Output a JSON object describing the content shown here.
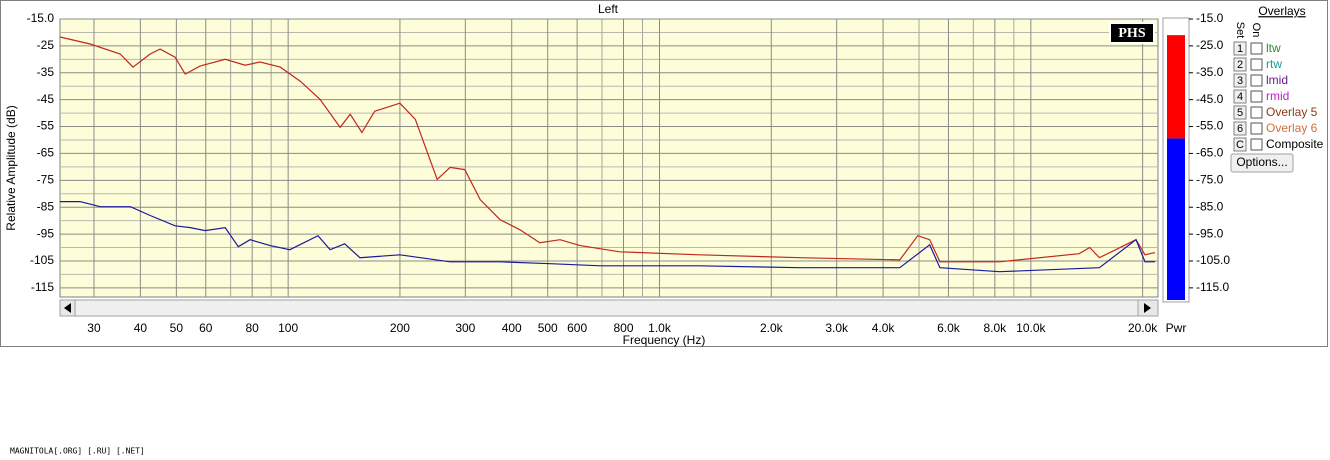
{
  "chart_data": {
    "type": "line",
    "title": "Left",
    "x_label": "Frequency (Hz)",
    "y_label": "Relative Amplitude (dB)",
    "xscale": "log",
    "grid": true,
    "background": "#fdfdd9",
    "xlim": [
      24.3,
      22000
    ],
    "ylim": [
      -118.4,
      -15
    ],
    "xticks": [
      30,
      40,
      50,
      60,
      80,
      100,
      200,
      300,
      400,
      500,
      600,
      800,
      {
        "value": 1000,
        "label": "1.0k"
      },
      {
        "value": 2000,
        "label": "2.0k"
      },
      {
        "value": 3000,
        "label": "3.0k"
      },
      {
        "value": 4000,
        "label": "4.0k"
      },
      {
        "value": 6000,
        "label": "6.0k"
      },
      {
        "value": 8000,
        "label": "8.0k"
      },
      {
        "value": 10000,
        "label": "10.0k"
      },
      {
        "value": 20000,
        "label": "20.0k"
      }
    ],
    "x_minor_grid": [
      70,
      90,
      700,
      900,
      5000,
      7000,
      9000
    ],
    "yticks": [
      {
        "value": -15,
        "label": "-15.0"
      },
      -25,
      -35,
      -45,
      -55,
      -65,
      -75,
      -85,
      -95,
      -105,
      -115
    ],
    "y_minor_grid": [
      -20,
      -30,
      -40,
      -50,
      -60,
      -70,
      -80,
      -90,
      -100,
      -110
    ],
    "series": [
      {
        "color": "#c0281c",
        "x": [
          24.3,
          29.3,
          35.3,
          38.2,
          42.5,
          45.2,
          49.6,
          52.8,
          57.9,
          67.7,
          76.6,
          84,
          95.2,
          107.7,
          121.9,
          138,
          146.9,
          158,
          171,
          200,
          220,
          252,
          273,
          299,
          329,
          372,
          421,
          476,
          540,
          611,
          782,
          1281,
          2389,
          4438,
          4960,
          5340,
          5690,
          8240,
          13500,
          14400,
          15300,
          19200,
          20300,
          21600
        ],
        "values": [
          -21.7,
          -24.3,
          -28,
          -32.9,
          -28,
          -26.2,
          -29.2,
          -35.5,
          -32.5,
          -30,
          -32.2,
          -31,
          -32.9,
          -38.1,
          -44.9,
          -55.3,
          -50.4,
          -57.2,
          -49.3,
          -46.3,
          -52.3,
          -74.7,
          -70.2,
          -71,
          -82.2,
          -89.6,
          -93.4,
          -98.2,
          -97.1,
          -99.3,
          -101.6,
          -102.7,
          -103.8,
          -104.6,
          -95.6,
          -97.1,
          -105.3,
          -105.3,
          -102.3,
          -100,
          -103.8,
          -97.1,
          -102.7,
          -101.9
        ]
      },
      {
        "color": "#1a1aa0",
        "x": [
          24.3,
          27.5,
          31.2,
          37.6,
          42.5,
          49.6,
          54.5,
          59.8,
          67.7,
          73.4,
          79,
          89.4,
          101,
          120.3,
          129.7,
          142,
          156,
          200,
          273,
          372,
          508,
          693,
          1281,
          2389,
          4438,
          5340,
          5690,
          8240,
          15300,
          19200,
          20300,
          21600
        ],
        "values": [
          -82.9,
          -82.9,
          -84.8,
          -84.8,
          -88.1,
          -91.9,
          -92.6,
          -93.7,
          -92.6,
          -99.7,
          -97.1,
          -99.3,
          -100.8,
          -95.6,
          -100.8,
          -98.6,
          -103.8,
          -102.7,
          -105.3,
          -105.3,
          -106,
          -106.8,
          -106.8,
          -107.5,
          -107.5,
          -99,
          -107.5,
          -109,
          -107.5,
          -97.1,
          -105.3,
          -105.3
        ]
      }
    ]
  },
  "badge": "PHS",
  "meter": {
    "label": "Pwr",
    "peak": -21,
    "level": -59.4,
    "peak_color": "#ff0000",
    "level_color": "#0000ff",
    "ticks": [
      {
        "value": -15,
        "label": "-15.0"
      },
      {
        "value": -25,
        "label": "-25.0"
      },
      {
        "value": -35,
        "label": "-35.0"
      },
      {
        "value": -45,
        "label": "-45.0"
      },
      {
        "value": -55,
        "label": "-55.0"
      },
      {
        "value": -65,
        "label": "-65.0"
      },
      {
        "value": -75,
        "label": "-75.0"
      },
      {
        "value": -85,
        "label": "-85.0"
      },
      {
        "value": -95,
        "label": "-95.0"
      },
      {
        "value": -105,
        "label": "-105.0"
      },
      {
        "value": -115,
        "label": "-115.0"
      }
    ]
  },
  "overlays": {
    "title": "Overlays",
    "set_header": "Set",
    "on_header": "On",
    "rows": [
      {
        "key": "1",
        "label": "ltw",
        "color": "#2e8b2e"
      },
      {
        "key": "2",
        "label": "rtw",
        "color": "#1a9a9a"
      },
      {
        "key": "3",
        "label": "lmid",
        "color": "#6a1a8a"
      },
      {
        "key": "4",
        "label": "rmid",
        "color": "#c020c0"
      },
      {
        "key": "5",
        "label": "Overlay 5",
        "color": "#8a3a1a"
      },
      {
        "key": "6",
        "label": "Overlay 6",
        "color": "#d07040"
      },
      {
        "key": "C",
        "label": "Composite",
        "color": "#000000"
      }
    ],
    "button": "Options..."
  },
  "watermark": "MAGNITOLA[.ORG] [.RU] [.NET]"
}
